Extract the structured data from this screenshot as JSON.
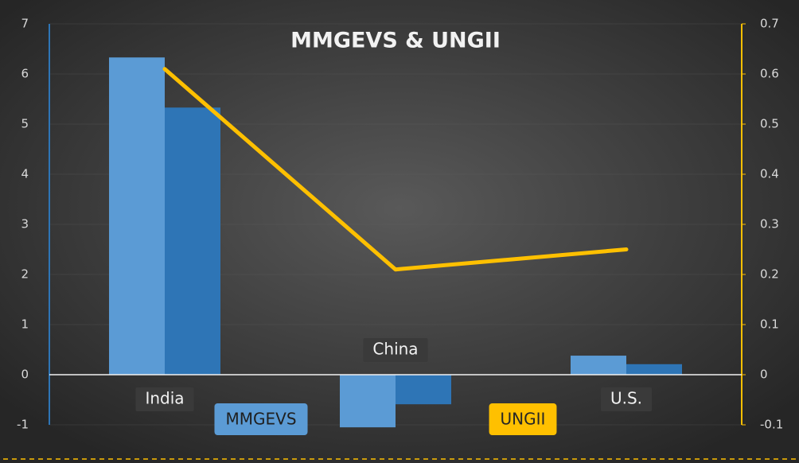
{
  "chart_data": {
    "type": "bar",
    "title": "MMGEVS & UNGII",
    "categories": [
      "India",
      "China",
      "U.S."
    ],
    "series": [
      {
        "name": "MMGEVS",
        "color": "#5b9bd5",
        "values": [
          6.33,
          -1.05,
          0.38
        ]
      },
      {
        "color": "#2e75b6",
        "values": [
          5.33,
          -0.59,
          0.21
        ]
      },
      {
        "name": "UNGII",
        "type": "line",
        "axis": "y2",
        "color": "#ffc000",
        "values": [
          0.61,
          0.21,
          0.25
        ]
      }
    ],
    "ylim": [
      -1,
      7
    ],
    "yticks": [
      -1,
      0,
      1,
      2,
      3,
      4,
      5,
      6,
      7
    ],
    "y2lim": [
      -0.1,
      0.7
    ],
    "y2ticks": [
      -0.1,
      0,
      0.1,
      0.2,
      0.3,
      0.4,
      0.5,
      0.6,
      0.7
    ],
    "grid": true,
    "legend": "bottom"
  }
}
